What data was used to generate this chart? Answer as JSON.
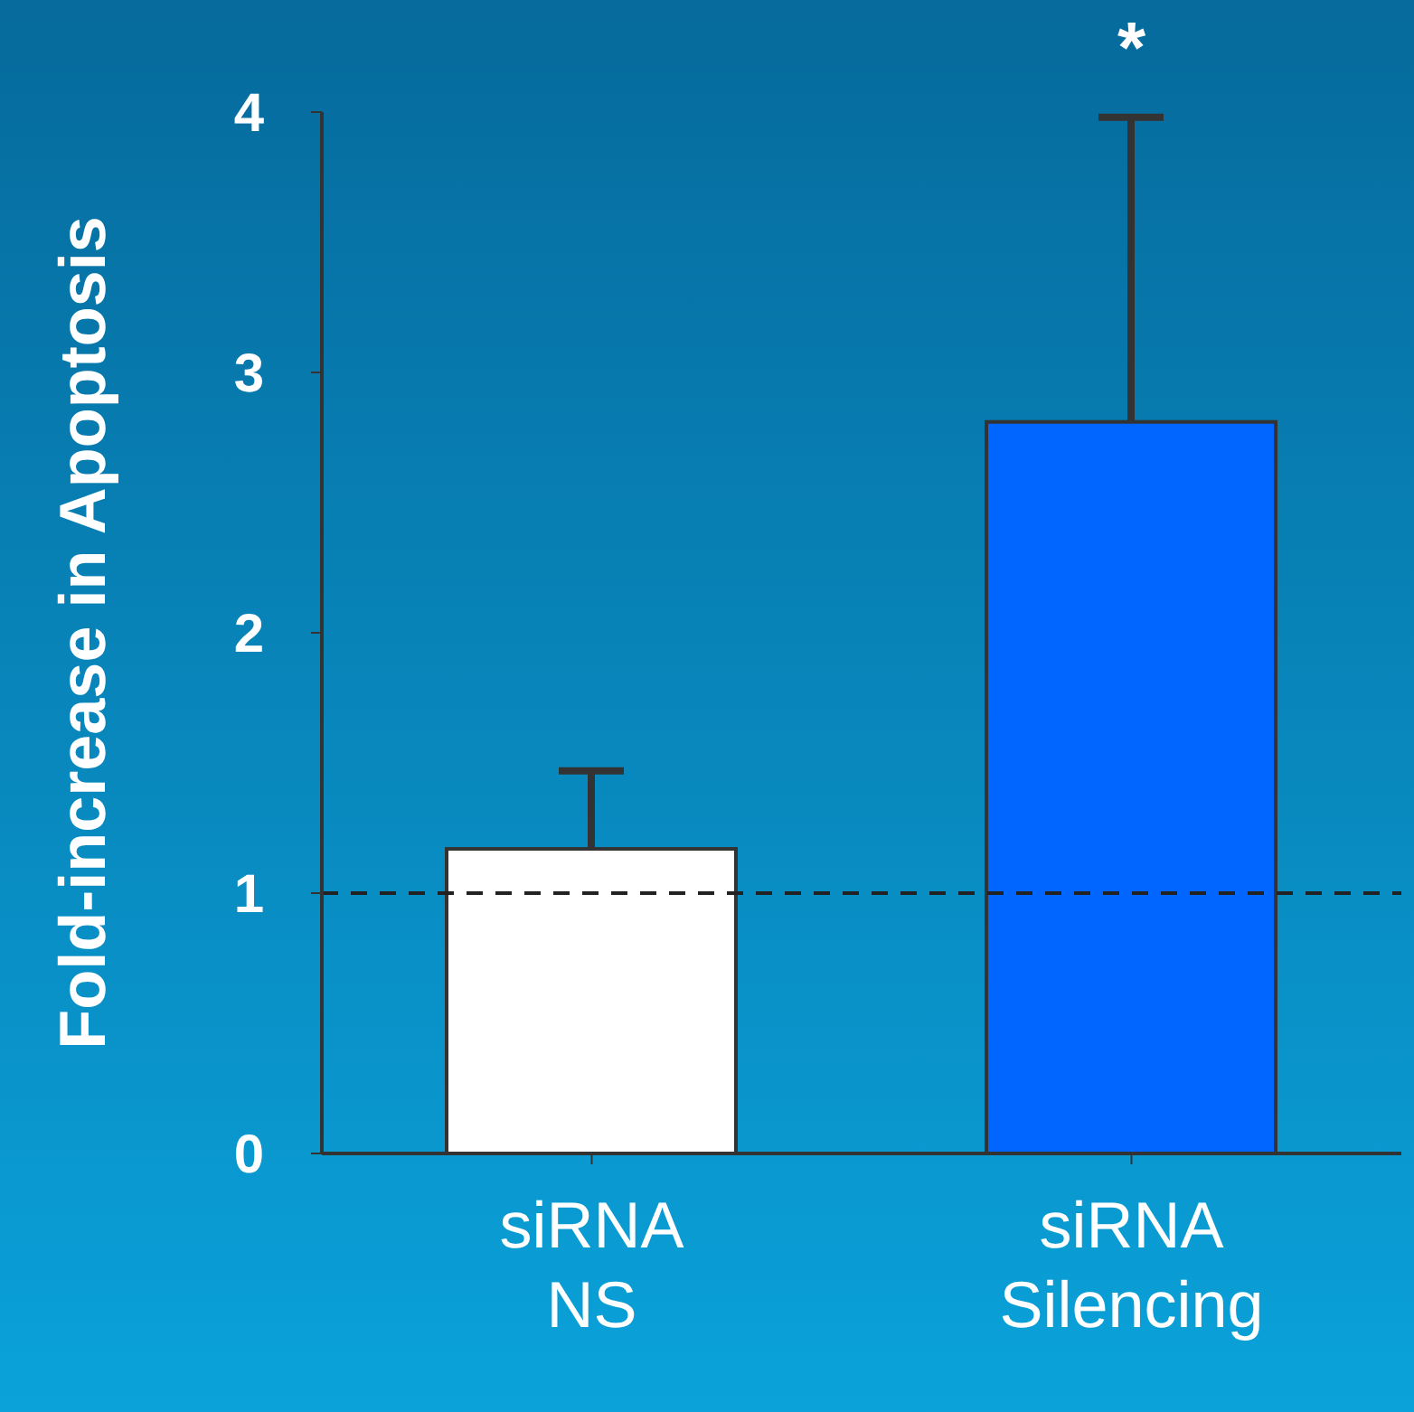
{
  "chart_data": {
    "type": "bar",
    "ylabel": "Fold-increase in Apoptosis",
    "categories": [
      "siRNA NS",
      "siRNA Silencing"
    ],
    "values": [
      1.17,
      2.81
    ],
    "colors": [
      "#ffffff",
      "#0066ff"
    ],
    "errors": [
      [
        1.17,
        1.47
      ],
      [
        2.81,
        3.98
      ]
    ],
    "ylim": [
      0,
      4
    ],
    "yticks": [
      0,
      1,
      2,
      3,
      4
    ],
    "ref_lines": [
      {
        "axis": "y",
        "value": 1,
        "color": "#222222",
        "line_style": "dashed"
      }
    ],
    "annotations": [
      {
        "text": "*",
        "x": "siRNA Silencing",
        "y": 3.98
      }
    ],
    "grid": false,
    "legend": false
  }
}
